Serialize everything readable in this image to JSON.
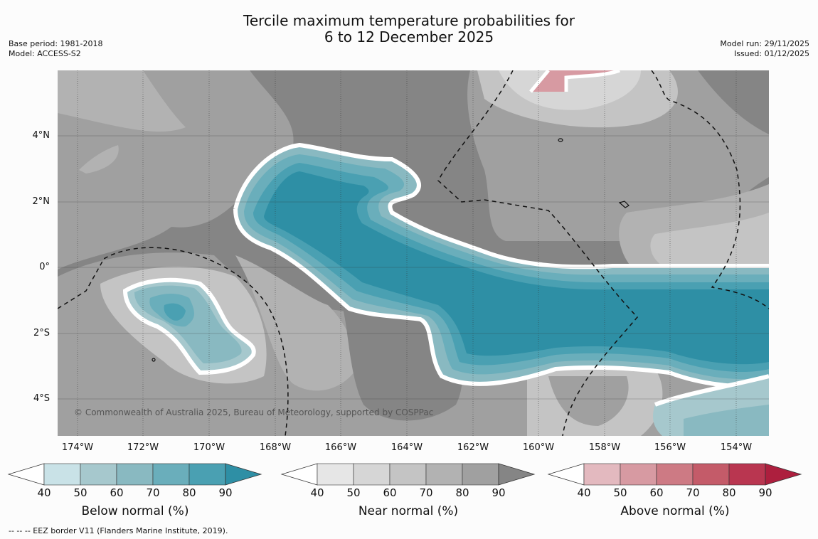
{
  "header": {
    "title_line1": "Tercile maximum temperature probabilities for",
    "title_line2": "6 to 12 December 2025",
    "base_period": "Base period: 1981-2018",
    "model": "Model: ACCESS-S2",
    "model_run": "Model run: 29/11/2025",
    "issued": "Issued: 01/12/2025"
  },
  "map": {
    "copyright": "© Commonwealth of Australia 2025, Bureau of Meteorology, supported by COSPPac",
    "lat_labels": [
      "4°N",
      "2°N",
      "0°",
      "2°S",
      "4°S"
    ],
    "lon_labels": [
      "174°W",
      "172°W",
      "170°W",
      "168°W",
      "166°W",
      "164°W",
      "162°W",
      "160°W",
      "158°W",
      "156°W",
      "154°W"
    ]
  },
  "legends": [
    {
      "title": "Below normal (%)",
      "ticks": [
        "40",
        "50",
        "60",
        "70",
        "80",
        "90"
      ],
      "colors": [
        "#c9e2e7",
        "#a6c8cd",
        "#89b9c1",
        "#6aaebb",
        "#4aa0b2",
        "#2e8fa5"
      ]
    },
    {
      "title": "Near normal (%)",
      "ticks": [
        "40",
        "50",
        "60",
        "70",
        "80",
        "90"
      ],
      "colors": [
        "#e6e6e6",
        "#d6d6d6",
        "#c4c4c4",
        "#b2b2b2",
        "#a0a0a0",
        "#858585"
      ]
    },
    {
      "title": "Above normal (%)",
      "ticks": [
        "40",
        "50",
        "60",
        "70",
        "80",
        "90"
      ],
      "colors": [
        "#e3b9bf",
        "#d79aa2",
        "#cd7a84",
        "#c45b69",
        "#b93650",
        "#ad1f3e"
      ]
    }
  ],
  "footnote": "--  --  -- EEZ border V11 (Flanders Marine Institute, 2019)."
}
